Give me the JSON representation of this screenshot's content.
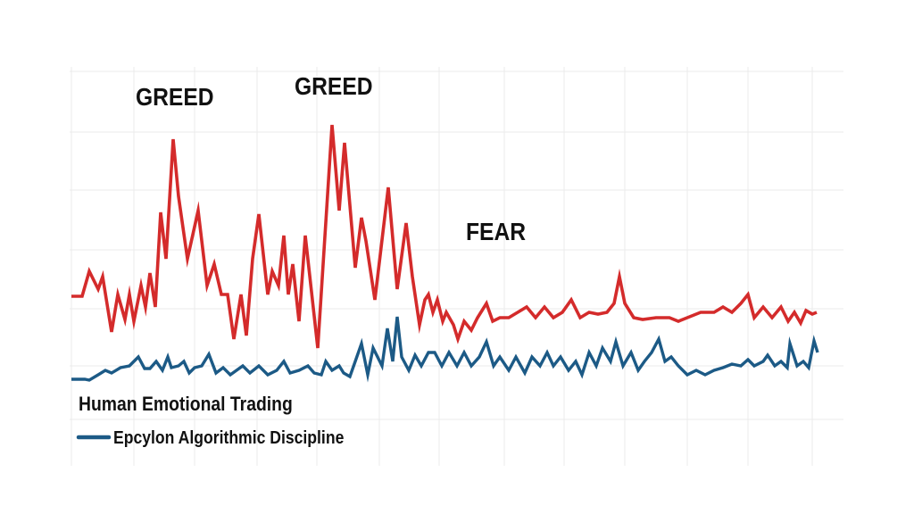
{
  "chart_data": {
    "type": "line",
    "title": "",
    "xlabel": "",
    "ylabel": "",
    "xlim": [
      0,
      173
    ],
    "ylim": [
      0,
      111
    ],
    "grid": true,
    "legend_position": "bottom-left",
    "annotations": [
      {
        "text": "GREED",
        "x": 22.8,
        "y": 91
      },
      {
        "text": "GREED",
        "x": 58.4,
        "y": 95
      },
      {
        "text": "FEAR",
        "x": 88,
        "y": 57
      }
    ],
    "series": [
      {
        "name": "Human Emotional Trading",
        "color": "#d42b2b",
        "x": [
          0,
          2.4,
          4,
          6,
          7,
          9,
          10.4,
          12,
          13,
          14,
          15.6,
          16.6,
          17.6,
          18.8,
          20,
          21.2,
          22.8,
          24,
          26,
          28.4,
          30.4,
          32,
          33.6,
          35,
          36.4,
          38,
          39.2,
          40.6,
          42,
          44,
          45,
          46.4,
          47.6,
          48.6,
          49.6,
          51,
          52.4,
          55.2,
          58.4,
          60,
          61.2,
          63.6,
          65,
          66,
          68,
          71,
          73,
          75,
          76.4,
          78,
          79.2,
          80,
          81,
          82,
          83.2,
          84,
          85.6,
          86.6,
          88,
          89.6,
          91,
          93,
          94.4,
          96,
          98,
          100,
          102,
          104,
          106,
          108,
          110,
          112,
          114,
          116,
          118,
          120,
          121.6,
          122.8,
          124,
          126,
          128,
          131,
          134,
          136,
          138,
          141,
          144,
          146,
          148,
          150,
          151.6,
          153,
          155,
          157,
          159,
          160.6,
          162,
          163.4,
          164.6,
          166,
          167
        ],
        "y": [
          47,
          47,
          54,
          49,
          52.5,
          37,
          47.5,
          40.5,
          47.5,
          40,
          50,
          44,
          53.5,
          44,
          70.5,
          57.5,
          91,
          75,
          57.5,
          71,
          50,
          56,
          47.5,
          47.5,
          35,
          47.5,
          36,
          57.5,
          70,
          47.5,
          54,
          50,
          64,
          47.5,
          56,
          40,
          64,
          32.5,
          95,
          71,
          90,
          55,
          69,
          62.5,
          46,
          77.5,
          49,
          67.5,
          52.5,
          39,
          46,
          47.5,
          42.5,
          46,
          40,
          42.5,
          39,
          35,
          40,
          37.5,
          41,
          45,
          40,
          41,
          41,
          42.5,
          44,
          41,
          44,
          41,
          42.5,
          46,
          41,
          42.5,
          42,
          42.5,
          45,
          52.5,
          45,
          41,
          40.5,
          41,
          41,
          40,
          41,
          42.5,
          42.5,
          44,
          42.5,
          45,
          47.5,
          41,
          44,
          41,
          44,
          40,
          42.5,
          39.5,
          43,
          42,
          42.5
        ]
      },
      {
        "name": "Epcylon Algorithmic Discipline",
        "color": "#1c5a86",
        "x": [
          0,
          3,
          4,
          6,
          7.6,
          9,
          11,
          13,
          15,
          16.4,
          17.6,
          19,
          20.4,
          21.6,
          22.4,
          24,
          25.2,
          26.4,
          27.6,
          29.2,
          30.8,
          32.4,
          34,
          35.6,
          37,
          38.4,
          40,
          42,
          44,
          46,
          47.6,
          49,
          51,
          53,
          54.4,
          56,
          57,
          58.4,
          60,
          61,
          62.4,
          63.6,
          65,
          66.4,
          67.6,
          69.6,
          70.8,
          72,
          73,
          74,
          75.6,
          77,
          78.4,
          80,
          81.4,
          83,
          84.6,
          86.4,
          88,
          89.6,
          91.4,
          93,
          94.6,
          96,
          98,
          99.6,
          101.6,
          103.2,
          105,
          106.6,
          108,
          109.6,
          111.4,
          113,
          114.4,
          116,
          117.6,
          119,
          120.8,
          122,
          123.6,
          125.4,
          127,
          128.4,
          130,
          131.6,
          133,
          134.4,
          136,
          138,
          140,
          142,
          144,
          146,
          148,
          150,
          151.6,
          153,
          155,
          156,
          157.6,
          159,
          160.4,
          161,
          162.6,
          164,
          165.2,
          166.4,
          167.2
        ],
        "y": [
          23.75,
          23.75,
          23.5,
          25,
          26.25,
          25.5,
          27,
          27.5,
          30,
          26.75,
          26.75,
          28.75,
          26.25,
          30,
          27,
          27.5,
          28.75,
          25.5,
          27,
          27.5,
          30.75,
          25.5,
          27,
          25,
          26.25,
          27.5,
          25.5,
          27.5,
          25,
          26.25,
          28.75,
          25.5,
          26.25,
          27.5,
          25.5,
          25,
          28.75,
          26.25,
          27.5,
          25.5,
          24.5,
          28.75,
          33.75,
          25,
          32.5,
          27.5,
          38,
          28.75,
          41.25,
          30,
          26.25,
          30.5,
          27.5,
          31.25,
          31.25,
          27.5,
          31.25,
          27.5,
          31.25,
          27.5,
          30,
          34.25,
          27.5,
          30,
          26.25,
          30,
          25.5,
          30,
          27.5,
          31.25,
          27.5,
          30,
          26.25,
          28.75,
          25,
          31.25,
          27.5,
          32.5,
          28.75,
          34.25,
          27.5,
          31.25,
          26.25,
          28.75,
          31.25,
          35,
          28.75,
          30,
          27.5,
          25,
          26.25,
          25,
          26.25,
          27,
          28,
          27.5,
          29.25,
          27.5,
          28.75,
          30.5,
          27.5,
          28.75,
          27,
          33.75,
          27.5,
          28.75,
          27,
          34.5,
          31.25
        ]
      }
    ]
  }
}
